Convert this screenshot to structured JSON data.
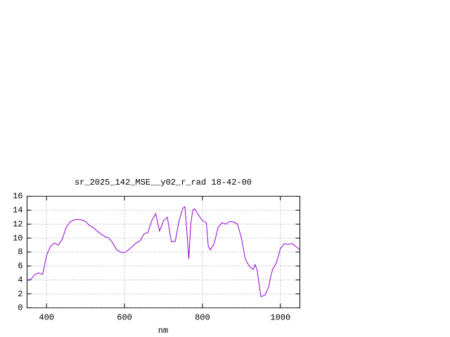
{
  "chart_data": {
    "type": "line",
    "title": "sr_2025_142_MSE__y02_r_rad 18-42-00",
    "x_label": "nm",
    "x": [
      350,
      360,
      370,
      380,
      390,
      400,
      410,
      420,
      430,
      440,
      450,
      460,
      470,
      480,
      490,
      500,
      510,
      520,
      530,
      540,
      550,
      560,
      570,
      580,
      590,
      600,
      610,
      620,
      630,
      640,
      650,
      660,
      670,
      680,
      690,
      700,
      710,
      720,
      730,
      740,
      750,
      755,
      760,
      765,
      770,
      775,
      780,
      790,
      800,
      810,
      815,
      820,
      830,
      840,
      850,
      860,
      870,
      880,
      890,
      900,
      910,
      920,
      930,
      935,
      940,
      950,
      960,
      970,
      975,
      980,
      990,
      1000,
      1010,
      1020,
      1030,
      1040,
      1050
    ],
    "series": [
      {
        "name": "sr_2025_142_MSE__y02_r_rad",
        "color": "#9400d3",
        "values": [
          3.9,
          4.1,
          4.8,
          5.0,
          4.8,
          7.5,
          8.8,
          9.3,
          9.0,
          9.8,
          11.5,
          12.3,
          12.6,
          12.7,
          12.6,
          12.4,
          11.8,
          11.5,
          11.0,
          10.6,
          10.2,
          10.0,
          9.3,
          8.3,
          8.0,
          7.9,
          8.3,
          8.8,
          9.3,
          9.6,
          10.6,
          10.8,
          12.5,
          13.5,
          11.0,
          12.5,
          13.0,
          9.5,
          9.5,
          12.5,
          14.3,
          14.5,
          11.0,
          7.0,
          12.0,
          14.0,
          14.2,
          13.3,
          12.5,
          12.2,
          8.8,
          8.3,
          9.2,
          11.5,
          12.2,
          12.0,
          12.4,
          12.3,
          12.0,
          10.0,
          7.0,
          6.0,
          5.5,
          6.2,
          5.5,
          1.6,
          1.8,
          3.0,
          4.5,
          5.5,
          6.5,
          8.5,
          9.2,
          9.1,
          9.2,
          8.8,
          8.3
        ]
      }
    ],
    "xlim": [
      350,
      1050
    ],
    "ylim": [
      0,
      16
    ],
    "xticks": [
      400,
      600,
      800,
      1000
    ],
    "yticks": [
      0,
      2,
      4,
      6,
      8,
      10,
      12,
      14,
      16
    ],
    "grid": true
  }
}
